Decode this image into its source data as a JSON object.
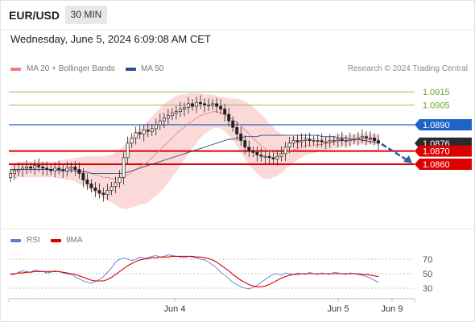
{
  "header": {
    "symbol": "EUR/USD",
    "timeframe": "30 MIN",
    "datetime": "Wednesday, June 5, 2024 6:09:08 AM CET"
  },
  "legend": {
    "ma20_label": "MA 20 + Bollinger Bands",
    "ma20_color": "#f08080",
    "ma50_label": "MA 50",
    "ma50_color": "#2c4f8c",
    "credit": "Research © 2024 Trading Central"
  },
  "rsi_legend": {
    "rsi_label": "RSI",
    "rsi_color": "#5b7fd6",
    "ma_label": "9MA",
    "ma_color": "#dd0000"
  },
  "chart_data": [
    {
      "type": "candlestick",
      "title": "EUR/USD 30 MIN",
      "x_tick_labels": [
        "Jun 4",
        "Jun 5",
        "Jun 9"
      ],
      "levels": [
        {
          "value": 1.0915,
          "label": "1.0915",
          "color": "#7cb342",
          "style": "thin"
        },
        {
          "value": 1.0905,
          "label": "1.0905",
          "color": "#7cb342",
          "style": "thin"
        },
        {
          "value": 1.089,
          "label": "1.0890",
          "color": "#1e64c8",
          "style": "line"
        },
        {
          "value": 1.0876,
          "label": "1.0876",
          "color": "#2b2b2b",
          "style": "current"
        },
        {
          "value": 1.087,
          "label": "1.0870",
          "color": "#dd0000",
          "style": "thick"
        },
        {
          "value": 1.086,
          "label": "1.0860",
          "color": "#dd0000",
          "style": "thick"
        }
      ],
      "close_prices": [
        1.0853,
        1.0855,
        1.0856,
        1.0857,
        1.0858,
        1.0857,
        1.0859,
        1.0858,
        1.0857,
        1.0856,
        1.0855,
        1.0857,
        1.0856,
        1.0855,
        1.0857,
        1.0858,
        1.0856,
        1.0853,
        1.0848,
        1.0845,
        1.0842,
        1.084,
        1.0838,
        1.0837,
        1.084,
        1.0843,
        1.0846,
        1.085,
        1.0865,
        1.0876,
        1.088,
        1.0884,
        1.0883,
        1.0886,
        1.0885,
        1.0887,
        1.089,
        1.0893,
        1.0895,
        1.0897,
        1.0899,
        1.09,
        1.0902,
        1.0903,
        1.0906,
        1.0904,
        1.0907,
        1.0906,
        1.0905,
        1.0905,
        1.0906,
        1.0904,
        1.0902,
        1.0898,
        1.0893,
        1.0888,
        1.0883,
        1.0878,
        1.0873,
        1.087,
        1.0869,
        1.0867,
        1.0866,
        1.0866,
        1.0865,
        1.0864,
        1.0866,
        1.0868,
        1.0873,
        1.0876,
        1.0878,
        1.0877,
        1.0878,
        1.0879,
        1.0878,
        1.0878,
        1.0878,
        1.0877,
        1.0877,
        1.0878,
        1.0878,
        1.0879,
        1.0878,
        1.0878,
        1.0879,
        1.0879,
        1.088,
        1.0881,
        1.088,
        1.088,
        1.0878,
        1.0876
      ],
      "ma20": [
        1.0855,
        1.0855,
        1.0856,
        1.0856,
        1.0856,
        1.0856,
        1.0856,
        1.0856,
        1.0856,
        1.0856,
        1.0856,
        1.0856,
        1.0856,
        1.0856,
        1.0856,
        1.0856,
        1.0856,
        1.0855,
        1.0855,
        1.0854,
        1.0853,
        1.0852,
        1.0851,
        1.085,
        1.085,
        1.0849,
        1.0849,
        1.0849,
        1.085,
        1.0852,
        1.0854,
        1.0856,
        1.0858,
        1.086,
        1.0862,
        1.0865,
        1.0868,
        1.0871,
        1.0874,
        1.0877,
        1.088,
        1.0883,
        1.0886,
        1.0888,
        1.0891,
        1.0893,
        1.0895,
        1.0897,
        1.0898,
        1.0899,
        1.09,
        1.09,
        1.0899,
        1.0898,
        1.0896,
        1.0894,
        1.0892,
        1.0889,
        1.0886,
        1.0883,
        1.088,
        1.0877,
        1.0874,
        1.0872,
        1.087,
        1.0869,
        1.0868,
        1.0868,
        1.0869,
        1.087,
        1.0871,
        1.0872,
        1.0873,
        1.0874,
        1.0874,
        1.0874,
        1.0875,
        1.0875,
        1.0876,
        1.0876,
        1.0877,
        1.0877,
        1.0878,
        1.0878,
        1.0878,
        1.0879,
        1.0879,
        1.0879,
        1.0879,
        1.0879,
        1.0879,
        1.0879
      ],
      "ma50": [
        1.0856,
        1.0856,
        1.0856,
        1.0856,
        1.0856,
        1.0856,
        1.0856,
        1.0856,
        1.0856,
        1.0856,
        1.0856,
        1.0856,
        1.0855,
        1.0855,
        1.0855,
        1.0855,
        1.0855,
        1.0854,
        1.0854,
        1.0854,
        1.0853,
        1.0853,
        1.0853,
        1.0853,
        1.0853,
        1.0853,
        1.0853,
        1.0853,
        1.0853,
        1.0854,
        1.0855,
        1.0856,
        1.0857,
        1.0858,
        1.0859,
        1.086,
        1.0861,
        1.0862,
        1.0863,
        1.0864,
        1.0865,
        1.0866,
        1.0867,
        1.0868,
        1.0869,
        1.087,
        1.0871,
        1.0872,
        1.0873,
        1.0874,
        1.0875,
        1.0876,
        1.0877,
        1.0878,
        1.0879,
        1.0879,
        1.088,
        1.088,
        1.0881,
        1.0881,
        1.0881,
        1.0881,
        1.0882,
        1.0882,
        1.0882,
        1.0882,
        1.0882,
        1.0882,
        1.0882,
        1.0882,
        1.0882,
        1.0882,
        1.0882,
        1.0882,
        1.0882,
        1.0882,
        1.0882,
        1.0881,
        1.0881,
        1.0881,
        1.0881,
        1.088,
        1.088,
        1.088,
        1.0879,
        1.0879,
        1.0879,
        1.0878,
        1.0878,
        1.0877,
        1.0877,
        1.0876
      ],
      "bb_half_width": [
        0.0006,
        0.0006,
        0.0006,
        0.0006,
        0.0006,
        0.0006,
        0.0006,
        0.0006,
        0.0006,
        0.0006,
        0.0006,
        0.0006,
        0.0007,
        0.0007,
        0.0008,
        0.0008,
        0.0009,
        0.001,
        0.0011,
        0.0012,
        0.0013,
        0.0014,
        0.0015,
        0.0016,
        0.0017,
        0.0018,
        0.002,
        0.0022,
        0.0024,
        0.0026,
        0.0027,
        0.0028,
        0.0029,
        0.003,
        0.0031,
        0.0031,
        0.0032,
        0.0032,
        0.0032,
        0.0031,
        0.003,
        0.0029,
        0.0027,
        0.0025,
        0.0023,
        0.0021,
        0.0019,
        0.0017,
        0.0015,
        0.0014,
        0.0013,
        0.0012,
        0.0012,
        0.0013,
        0.0014,
        0.0016,
        0.0018,
        0.002,
        0.0022,
        0.0023,
        0.0024,
        0.0024,
        0.0024,
        0.0023,
        0.0021,
        0.0019,
        0.0017,
        0.0015,
        0.0013,
        0.0011,
        0.001,
        0.0009,
        0.0008,
        0.0007,
        0.0006,
        0.0006,
        0.0005,
        0.0005,
        0.0005,
        0.0005,
        0.0005,
        0.0005,
        0.0005,
        0.0004,
        0.0004,
        0.0004,
        0.0004,
        0.0004,
        0.0004,
        0.0004,
        0.0004,
        0.0004
      ],
      "projection": {
        "from": 1.0876,
        "to": 1.086,
        "color": "#2c5fa8"
      }
    },
    {
      "type": "line",
      "title": "RSI",
      "y_tick_labels": [
        "70",
        "50",
        "30"
      ],
      "ylim": [
        20,
        80
      ],
      "series": [
        {
          "name": "RSI",
          "color": "#5b7fd6",
          "values": [
            48,
            49,
            52,
            54,
            53,
            52,
            55,
            54,
            53,
            51,
            52,
            54,
            53,
            51,
            50,
            49,
            46,
            43,
            40,
            38,
            37,
            39,
            42,
            46,
            52,
            58,
            66,
            70,
            72,
            70,
            68,
            70,
            73,
            71,
            72,
            74,
            75,
            73,
            74,
            76,
            75,
            74,
            73,
            72,
            74,
            73,
            72,
            70,
            69,
            66,
            62,
            58,
            52,
            48,
            43,
            38,
            35,
            32,
            30,
            29,
            31,
            34,
            38,
            42,
            46,
            49,
            50,
            48,
            51,
            50,
            49,
            51,
            50,
            49,
            52,
            50,
            49,
            51,
            50,
            49,
            52,
            51,
            50,
            49,
            51,
            50,
            49,
            48,
            46,
            44,
            41,
            38
          ]
        },
        {
          "name": "9MA",
          "color": "#dd0000",
          "values": [
            50,
            50,
            51,
            51,
            52,
            52,
            53,
            53,
            53,
            53,
            53,
            53,
            53,
            52,
            51,
            50,
            49,
            47,
            45,
            43,
            41,
            40,
            40,
            40,
            42,
            45,
            49,
            53,
            57,
            61,
            64,
            67,
            69,
            70,
            71,
            72,
            72,
            73,
            73,
            73,
            74,
            74,
            74,
            74,
            74,
            74,
            73,
            73,
            72,
            71,
            69,
            66,
            62,
            58,
            54,
            49,
            45,
            41,
            38,
            35,
            33,
            32,
            32,
            33,
            35,
            38,
            41,
            44,
            46,
            48,
            49,
            49,
            50,
            50,
            50,
            50,
            50,
            50,
            50,
            50,
            50,
            50,
            50,
            50,
            50,
            50,
            50,
            49,
            49,
            48,
            47,
            46
          ]
        }
      ]
    }
  ]
}
